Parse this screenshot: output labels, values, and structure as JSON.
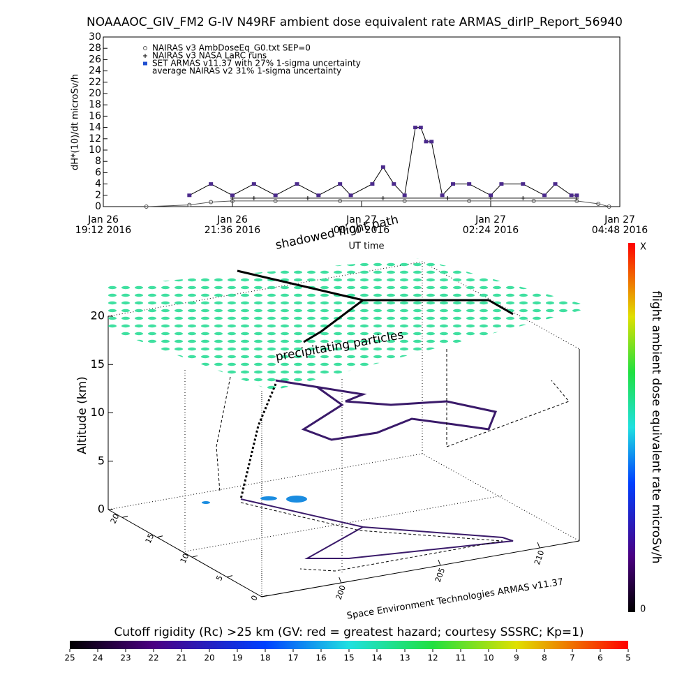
{
  "chart_data": [
    {
      "type": "line",
      "title": "NOAAAOC_GIV_FM2 G-IV   N49RF  ambient dose equivalent rate ARMAS_dirIP_Report_56940",
      "ylabel": "dH*(10)/dt microSv/h",
      "xlabel": "UT time",
      "ylim": [
        0,
        30
      ],
      "yticks": [
        0,
        2,
        4,
        6,
        8,
        10,
        12,
        14,
        16,
        18,
        20,
        22,
        24,
        26,
        28,
        30
      ],
      "xlim": [
        "2016-01-26 19:12",
        "2016-01-27 04:48"
      ],
      "xticks": [
        {
          "value": "2016-01-26 19:12",
          "label": [
            "Jan 26",
            "19:12 2016"
          ]
        },
        {
          "value": "2016-01-26 21:36",
          "label": [
            "Jan 26",
            "21:36 2016"
          ]
        },
        {
          "value": "2016-01-27 00:00",
          "label": [
            "Jan 27",
            "00:00 2016"
          ]
        },
        {
          "value": "2016-01-27 02:24",
          "label": [
            "Jan 27",
            "02:24 2016"
          ]
        },
        {
          "value": "2016-01-27 04:48",
          "label": [
            "Jan 27",
            "04:48 2016"
          ]
        }
      ],
      "series": [
        {
          "name": "NAIRAS v3 AmbDoseEq_G0.txt SEP=0",
          "color": "#555555",
          "marker": "circle",
          "x": [
            "2016-01-26 20:00",
            "2016-01-26 20:48",
            "2016-01-26 21:12",
            "2016-01-26 21:36",
            "2016-01-26 22:24",
            "2016-01-26 23:36",
            "2016-01-27 00:48",
            "2016-01-27 02:00",
            "2016-01-27 03:12",
            "2016-01-27 04:00",
            "2016-01-27 04:24",
            "2016-01-27 04:36"
          ],
          "values": [
            0,
            0.3,
            0.8,
            1,
            1,
            1,
            1,
            1,
            1,
            1,
            0.5,
            0
          ]
        },
        {
          "name": "NAIRAS v3 NASA LaRC runs",
          "color": "#000000",
          "marker": "plus",
          "x": [
            "2016-01-26 21:36",
            "2016-01-26 22:00",
            "2016-01-26 23:00",
            "2016-01-27 00:24",
            "2016-01-27 01:36",
            "2016-01-27 02:24",
            "2016-01-27 03:00",
            "2016-01-27 04:00"
          ],
          "values": [
            1.5,
            1.5,
            1.5,
            1.5,
            1.5,
            1.5,
            1.5,
            1.5
          ]
        },
        {
          "name": "SET ARMAS v11.37 with 27% 1-sigma uncertainty",
          "color": "#4b2a8c",
          "marker": "dot",
          "x": [
            "2016-01-26 20:48",
            "2016-01-26 21:12",
            "2016-01-26 21:36",
            "2016-01-26 22:00",
            "2016-01-26 22:24",
            "2016-01-26 22:48",
            "2016-01-26 23:12",
            "2016-01-26 23:36",
            "2016-01-26 23:48",
            "2016-01-27 00:12",
            "2016-01-27 00:24",
            "2016-01-27 00:36",
            "2016-01-27 00:48",
            "2016-01-27 01:00",
            "2016-01-27 01:06",
            "2016-01-27 01:12",
            "2016-01-27 01:18",
            "2016-01-27 01:30",
            "2016-01-27 01:42",
            "2016-01-27 02:00",
            "2016-01-27 02:24",
            "2016-01-27 02:36",
            "2016-01-27 03:00",
            "2016-01-27 03:24",
            "2016-01-27 03:36",
            "2016-01-27 03:54",
            "2016-01-27 04:00"
          ],
          "values": [
            2,
            4,
            2,
            4,
            2,
            4,
            2,
            4,
            2,
            4,
            7,
            4,
            2,
            14,
            14,
            11.5,
            11.5,
            2,
            4,
            4,
            2,
            4,
            4,
            2,
            4,
            2,
            2
          ]
        }
      ],
      "legend_note": "average NAIRAS v2 31% 1-sigma uncertainty"
    },
    {
      "type": "surface3d",
      "zlabel": "Altitude (km)",
      "zlim": [
        0,
        20
      ],
      "zticks": [
        0,
        5,
        10,
        15,
        20
      ],
      "ylim": [
        0,
        22
      ],
      "yticks": [
        0,
        5,
        10,
        15,
        20
      ],
      "xlim": [
        196,
        212
      ],
      "xticks": [
        200,
        205,
        210
      ],
      "annotations": [
        "shadowed flight path",
        "precipitating particles"
      ],
      "credit": "Space Environment Technologies ARMAS v11.37",
      "colorbar": {
        "label": "flight ambient dose equivalent rate microSv/h",
        "end_labels": [
          "X",
          "0"
        ]
      }
    },
    {
      "type": "colorbar",
      "title": "Cutoff rigidity (Rc) >25 km (GV: red = greatest hazard; courtesy SSSRC; Kp=1)",
      "lim": [
        25,
        5
      ],
      "ticks": [
        25,
        24,
        23,
        22,
        21,
        20,
        19,
        18,
        17,
        16,
        15,
        14,
        13,
        12,
        11,
        10,
        9,
        8,
        7,
        6,
        5
      ]
    }
  ]
}
